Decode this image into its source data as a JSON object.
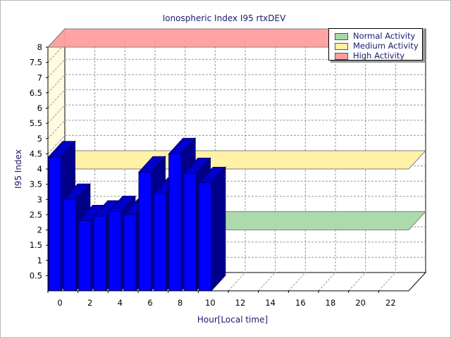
{
  "chart_data": {
    "type": "bar",
    "title": "Ionospheric Index I95 rtxDEV",
    "xlabel": "Hour[Local time]",
    "ylabel": "I95 Index",
    "xlim": [
      0,
      24
    ],
    "ylim": [
      0,
      8
    ],
    "xticks": [
      "0",
      "2",
      "4",
      "6",
      "8",
      "10",
      "12",
      "14",
      "16",
      "18",
      "20",
      "22"
    ],
    "yticks": [
      "0.5",
      "1",
      "1.5",
      "2",
      "2.5",
      "3",
      "3.5",
      "4",
      "4.5",
      "5",
      "5.5",
      "6",
      "6.5",
      "7",
      "7.5",
      "8"
    ],
    "grid": true,
    "legend_position": "top-right",
    "bands": [
      {
        "name": "Normal Activity",
        "value": 2,
        "color": "#a8d8a8"
      },
      {
        "name": "Medium Activity",
        "value": 4,
        "color": "#fff0a0"
      },
      {
        "name": "High Activity",
        "value": 8,
        "color": "#ff9e9e"
      }
    ],
    "series": [
      {
        "x": [
          0,
          1,
          2,
          3,
          4,
          5,
          6,
          7,
          8,
          9,
          10
        ],
        "values": [
          4.4,
          3.0,
          2.3,
          2.45,
          2.6,
          2.5,
          3.9,
          3.2,
          4.5,
          3.85,
          3.55
        ],
        "color": "#0000ff"
      }
    ]
  }
}
